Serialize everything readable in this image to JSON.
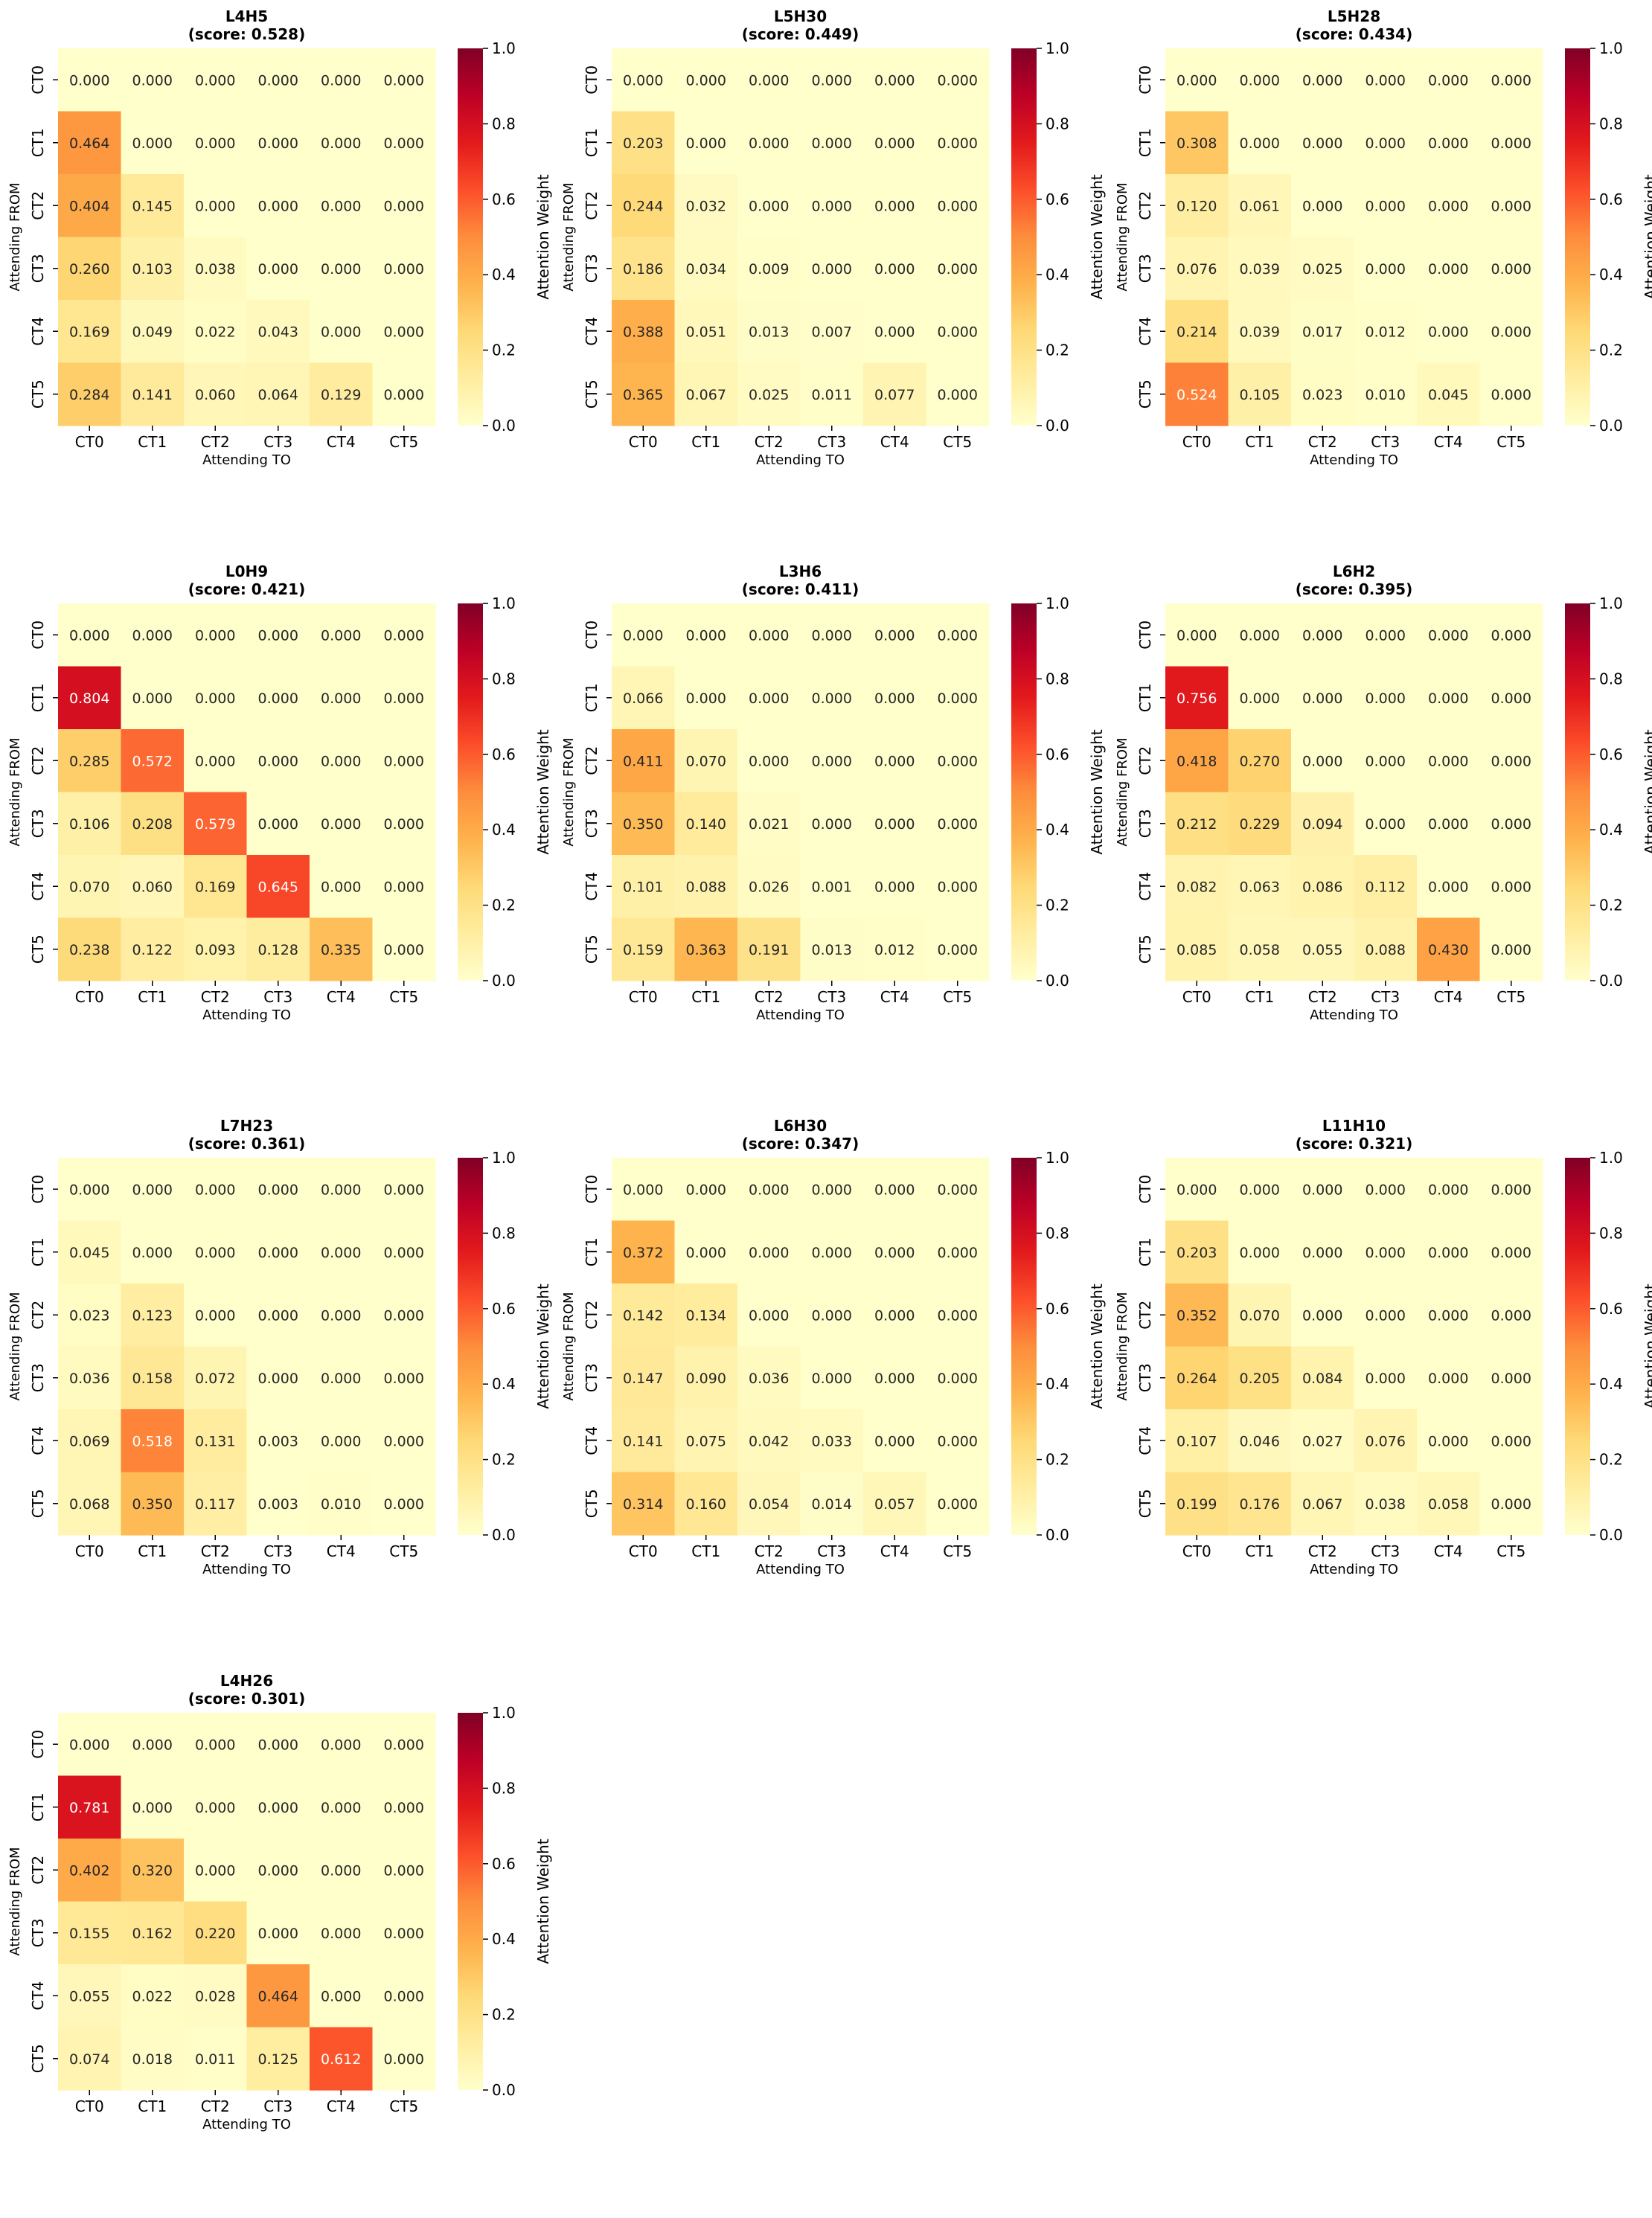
{
  "colorbar": {
    "label": "Attention Weight",
    "ticks": [
      "0.0",
      "0.2",
      "0.4",
      "0.6",
      "0.8",
      "1.0"
    ],
    "tick_values": [
      0,
      0.2,
      0.4,
      0.6,
      0.8,
      1.0
    ],
    "colormap": "YlOrRd",
    "colormap_stops": [
      "#ffffcc",
      "#ffeda0",
      "#fed976",
      "#feb24c",
      "#fd8d3c",
      "#fc4e2a",
      "#e31a1c",
      "#bd0026",
      "#800026"
    ]
  },
  "chart_data": [
    {
      "type": "heatmap",
      "title": "L4H5",
      "subtitle": "(score: 0.528)",
      "xlabel": "Attending TO",
      "ylabel": "Attending FROM",
      "x_categories": [
        "CT0",
        "CT1",
        "CT2",
        "CT3",
        "CT4",
        "CT5"
      ],
      "y_categories": [
        "CT0",
        "CT1",
        "CT2",
        "CT3",
        "CT4",
        "CT5"
      ],
      "vmin": 0,
      "vmax": 1,
      "values": [
        [
          "0.000",
          "0.000",
          "0.000",
          "0.000",
          "0.000",
          "0.000"
        ],
        [
          "0.464",
          "0.000",
          "0.000",
          "0.000",
          "0.000",
          "0.000"
        ],
        [
          "0.404",
          "0.145",
          "0.000",
          "0.000",
          "0.000",
          "0.000"
        ],
        [
          "0.260",
          "0.103",
          "0.038",
          "0.000",
          "0.000",
          "0.000"
        ],
        [
          "0.169",
          "0.049",
          "0.022",
          "0.043",
          "0.000",
          "0.000"
        ],
        [
          "0.284",
          "0.141",
          "0.060",
          "0.064",
          "0.129",
          "0.000"
        ]
      ]
    },
    {
      "type": "heatmap",
      "title": "L5H30",
      "subtitle": "(score: 0.449)",
      "xlabel": "Attending TO",
      "ylabel": "Attending FROM",
      "x_categories": [
        "CT0",
        "CT1",
        "CT2",
        "CT3",
        "CT4",
        "CT5"
      ],
      "y_categories": [
        "CT0",
        "CT1",
        "CT2",
        "CT3",
        "CT4",
        "CT5"
      ],
      "vmin": 0,
      "vmax": 1,
      "values": [
        [
          "0.000",
          "0.000",
          "0.000",
          "0.000",
          "0.000",
          "0.000"
        ],
        [
          "0.203",
          "0.000",
          "0.000",
          "0.000",
          "0.000",
          "0.000"
        ],
        [
          "0.244",
          "0.032",
          "0.000",
          "0.000",
          "0.000",
          "0.000"
        ],
        [
          "0.186",
          "0.034",
          "0.009",
          "0.000",
          "0.000",
          "0.000"
        ],
        [
          "0.388",
          "0.051",
          "0.013",
          "0.007",
          "0.000",
          "0.000"
        ],
        [
          "0.365",
          "0.067",
          "0.025",
          "0.011",
          "0.077",
          "0.000"
        ]
      ]
    },
    {
      "type": "heatmap",
      "title": "L5H28",
      "subtitle": "(score: 0.434)",
      "xlabel": "Attending TO",
      "ylabel": "Attending FROM",
      "x_categories": [
        "CT0",
        "CT1",
        "CT2",
        "CT3",
        "CT4",
        "CT5"
      ],
      "y_categories": [
        "CT0",
        "CT1",
        "CT2",
        "CT3",
        "CT4",
        "CT5"
      ],
      "vmin": 0,
      "vmax": 1,
      "values": [
        [
          "0.000",
          "0.000",
          "0.000",
          "0.000",
          "0.000",
          "0.000"
        ],
        [
          "0.308",
          "0.000",
          "0.000",
          "0.000",
          "0.000",
          "0.000"
        ],
        [
          "0.120",
          "0.061",
          "0.000",
          "0.000",
          "0.000",
          "0.000"
        ],
        [
          "0.076",
          "0.039",
          "0.025",
          "0.000",
          "0.000",
          "0.000"
        ],
        [
          "0.214",
          "0.039",
          "0.017",
          "0.012",
          "0.000",
          "0.000"
        ],
        [
          "0.524",
          "0.105",
          "0.023",
          "0.010",
          "0.045",
          "0.000"
        ]
      ]
    },
    {
      "type": "heatmap",
      "title": "L0H9",
      "subtitle": "(score: 0.421)",
      "xlabel": "Attending TO",
      "ylabel": "Attending FROM",
      "x_categories": [
        "CT0",
        "CT1",
        "CT2",
        "CT3",
        "CT4",
        "CT5"
      ],
      "y_categories": [
        "CT0",
        "CT1",
        "CT2",
        "CT3",
        "CT4",
        "CT5"
      ],
      "vmin": 0,
      "vmax": 1,
      "values": [
        [
          "0.000",
          "0.000",
          "0.000",
          "0.000",
          "0.000",
          "0.000"
        ],
        [
          "0.804",
          "0.000",
          "0.000",
          "0.000",
          "0.000",
          "0.000"
        ],
        [
          "0.285",
          "0.572",
          "0.000",
          "0.000",
          "0.000",
          "0.000"
        ],
        [
          "0.106",
          "0.208",
          "0.579",
          "0.000",
          "0.000",
          "0.000"
        ],
        [
          "0.070",
          "0.060",
          "0.169",
          "0.645",
          "0.000",
          "0.000"
        ],
        [
          "0.238",
          "0.122",
          "0.093",
          "0.128",
          "0.335",
          "0.000"
        ]
      ]
    },
    {
      "type": "heatmap",
      "title": "L3H6",
      "subtitle": "(score: 0.411)",
      "xlabel": "Attending TO",
      "ylabel": "Attending FROM",
      "x_categories": [
        "CT0",
        "CT1",
        "CT2",
        "CT3",
        "CT4",
        "CT5"
      ],
      "y_categories": [
        "CT0",
        "CT1",
        "CT2",
        "CT3",
        "CT4",
        "CT5"
      ],
      "vmin": 0,
      "vmax": 1,
      "values": [
        [
          "0.000",
          "0.000",
          "0.000",
          "0.000",
          "0.000",
          "0.000"
        ],
        [
          "0.066",
          "0.000",
          "0.000",
          "0.000",
          "0.000",
          "0.000"
        ],
        [
          "0.411",
          "0.070",
          "0.000",
          "0.000",
          "0.000",
          "0.000"
        ],
        [
          "0.350",
          "0.140",
          "0.021",
          "0.000",
          "0.000",
          "0.000"
        ],
        [
          "0.101",
          "0.088",
          "0.026",
          "0.001",
          "0.000",
          "0.000"
        ],
        [
          "0.159",
          "0.363",
          "0.191",
          "0.013",
          "0.012",
          "0.000"
        ]
      ]
    },
    {
      "type": "heatmap",
      "title": "L6H2",
      "subtitle": "(score: 0.395)",
      "xlabel": "Attending TO",
      "ylabel": "Attending FROM",
      "x_categories": [
        "CT0",
        "CT1",
        "CT2",
        "CT3",
        "CT4",
        "CT5"
      ],
      "y_categories": [
        "CT0",
        "CT1",
        "CT2",
        "CT3",
        "CT4",
        "CT5"
      ],
      "vmin": 0,
      "vmax": 1,
      "values": [
        [
          "0.000",
          "0.000",
          "0.000",
          "0.000",
          "0.000",
          "0.000"
        ],
        [
          "0.756",
          "0.000",
          "0.000",
          "0.000",
          "0.000",
          "0.000"
        ],
        [
          "0.418",
          "0.270",
          "0.000",
          "0.000",
          "0.000",
          "0.000"
        ],
        [
          "0.212",
          "0.229",
          "0.094",
          "0.000",
          "0.000",
          "0.000"
        ],
        [
          "0.082",
          "0.063",
          "0.086",
          "0.112",
          "0.000",
          "0.000"
        ],
        [
          "0.085",
          "0.058",
          "0.055",
          "0.088",
          "0.430",
          "0.000"
        ]
      ]
    },
    {
      "type": "heatmap",
      "title": "L7H23",
      "subtitle": "(score: 0.361)",
      "xlabel": "Attending TO",
      "ylabel": "Attending FROM",
      "x_categories": [
        "CT0",
        "CT1",
        "CT2",
        "CT3",
        "CT4",
        "CT5"
      ],
      "y_categories": [
        "CT0",
        "CT1",
        "CT2",
        "CT3",
        "CT4",
        "CT5"
      ],
      "vmin": 0,
      "vmax": 1,
      "values": [
        [
          "0.000",
          "0.000",
          "0.000",
          "0.000",
          "0.000",
          "0.000"
        ],
        [
          "0.045",
          "0.000",
          "0.000",
          "0.000",
          "0.000",
          "0.000"
        ],
        [
          "0.023",
          "0.123",
          "0.000",
          "0.000",
          "0.000",
          "0.000"
        ],
        [
          "0.036",
          "0.158",
          "0.072",
          "0.000",
          "0.000",
          "0.000"
        ],
        [
          "0.069",
          "0.518",
          "0.131",
          "0.003",
          "0.000",
          "0.000"
        ],
        [
          "0.068",
          "0.350",
          "0.117",
          "0.003",
          "0.010",
          "0.000"
        ]
      ]
    },
    {
      "type": "heatmap",
      "title": "L6H30",
      "subtitle": "(score: 0.347)",
      "xlabel": "Attending TO",
      "ylabel": "Attending FROM",
      "x_categories": [
        "CT0",
        "CT1",
        "CT2",
        "CT3",
        "CT4",
        "CT5"
      ],
      "y_categories": [
        "CT0",
        "CT1",
        "CT2",
        "CT3",
        "CT4",
        "CT5"
      ],
      "vmin": 0,
      "vmax": 1,
      "values": [
        [
          "0.000",
          "0.000",
          "0.000",
          "0.000",
          "0.000",
          "0.000"
        ],
        [
          "0.372",
          "0.000",
          "0.000",
          "0.000",
          "0.000",
          "0.000"
        ],
        [
          "0.142",
          "0.134",
          "0.000",
          "0.000",
          "0.000",
          "0.000"
        ],
        [
          "0.147",
          "0.090",
          "0.036",
          "0.000",
          "0.000",
          "0.000"
        ],
        [
          "0.141",
          "0.075",
          "0.042",
          "0.033",
          "0.000",
          "0.000"
        ],
        [
          "0.314",
          "0.160",
          "0.054",
          "0.014",
          "0.057",
          "0.000"
        ]
      ]
    },
    {
      "type": "heatmap",
      "title": "L11H10",
      "subtitle": "(score: 0.321)",
      "xlabel": "Attending TO",
      "ylabel": "Attending FROM",
      "x_categories": [
        "CT0",
        "CT1",
        "CT2",
        "CT3",
        "CT4",
        "CT5"
      ],
      "y_categories": [
        "CT0",
        "CT1",
        "CT2",
        "CT3",
        "CT4",
        "CT5"
      ],
      "vmin": 0,
      "vmax": 1,
      "values": [
        [
          "0.000",
          "0.000",
          "0.000",
          "0.000",
          "0.000",
          "0.000"
        ],
        [
          "0.203",
          "0.000",
          "0.000",
          "0.000",
          "0.000",
          "0.000"
        ],
        [
          "0.352",
          "0.070",
          "0.000",
          "0.000",
          "0.000",
          "0.000"
        ],
        [
          "0.264",
          "0.205",
          "0.084",
          "0.000",
          "0.000",
          "0.000"
        ],
        [
          "0.107",
          "0.046",
          "0.027",
          "0.076",
          "0.000",
          "0.000"
        ],
        [
          "0.199",
          "0.176",
          "0.067",
          "0.038",
          "0.058",
          "0.000"
        ]
      ]
    },
    {
      "type": "heatmap",
      "title": "L4H26",
      "subtitle": "(score: 0.301)",
      "xlabel": "Attending TO",
      "ylabel": "Attending FROM",
      "x_categories": [
        "CT0",
        "CT1",
        "CT2",
        "CT3",
        "CT4",
        "CT5"
      ],
      "y_categories": [
        "CT0",
        "CT1",
        "CT2",
        "CT3",
        "CT4",
        "CT5"
      ],
      "vmin": 0,
      "vmax": 1,
      "values": [
        [
          "0.000",
          "0.000",
          "0.000",
          "0.000",
          "0.000",
          "0.000"
        ],
        [
          "0.781",
          "0.000",
          "0.000",
          "0.000",
          "0.000",
          "0.000"
        ],
        [
          "0.402",
          "0.320",
          "0.000",
          "0.000",
          "0.000",
          "0.000"
        ],
        [
          "0.155",
          "0.162",
          "0.220",
          "0.000",
          "0.000",
          "0.000"
        ],
        [
          "0.055",
          "0.022",
          "0.028",
          "0.464",
          "0.000",
          "0.000"
        ],
        [
          "0.074",
          "0.018",
          "0.011",
          "0.125",
          "0.612",
          "0.000"
        ]
      ]
    }
  ]
}
